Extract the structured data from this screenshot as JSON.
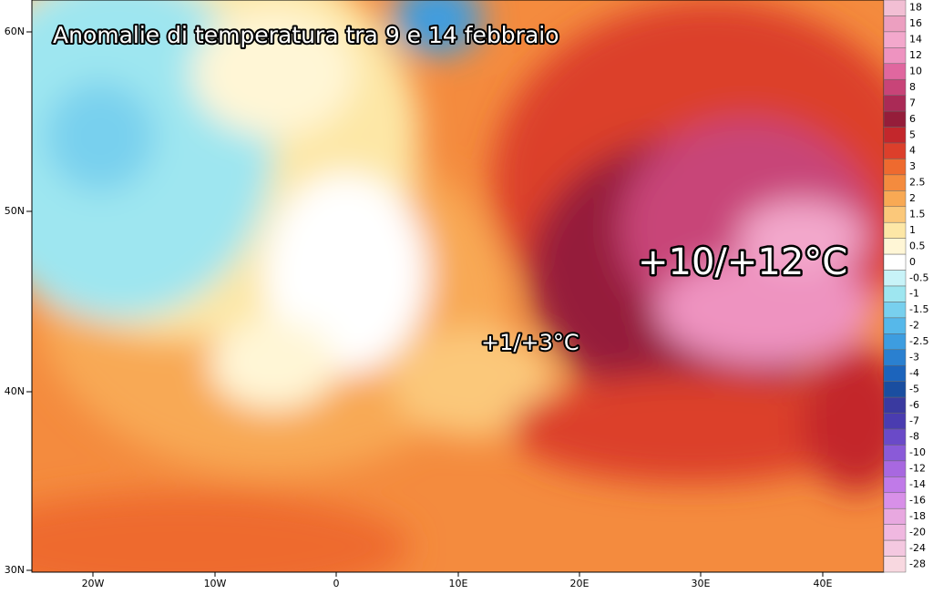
{
  "map": {
    "title": "Anomalie di temperatura tra 9 e 14 febbraio",
    "annotations": [
      "+10/+12°C",
      "+1/+3°C"
    ],
    "lat_labels": [
      "60N",
      "50N",
      "40N",
      "30N"
    ],
    "lon_labels": [
      "20W",
      "10W",
      "0",
      "10E",
      "20E",
      "30E",
      "40E"
    ],
    "legend": [
      {
        "label": "18",
        "color": "#f2bfd4"
      },
      {
        "label": "16",
        "color": "#ec9fc0"
      },
      {
        "label": "14",
        "color": "#f3a8cc"
      },
      {
        "label": "12",
        "color": "#ee93c0"
      },
      {
        "label": "10",
        "color": "#e0679f"
      },
      {
        "label": "8",
        "color": "#c84478"
      },
      {
        "label": "7",
        "color": "#aa2a56"
      },
      {
        "label": "6",
        "color": "#951d3a"
      },
      {
        "label": "5",
        "color": "#c3272c"
      },
      {
        "label": "4",
        "color": "#dc3f2b"
      },
      {
        "label": "3",
        "color": "#ee6a2f"
      },
      {
        "label": "2.5",
        "color": "#f48b3e"
      },
      {
        "label": "2",
        "color": "#f8a954"
      },
      {
        "label": "1.5",
        "color": "#fbc87a"
      },
      {
        "label": "1",
        "color": "#fde7a6"
      },
      {
        "label": "0.5",
        "color": "#fff6d6"
      },
      {
        "label": "0",
        "color": "#ffffff"
      },
      {
        "label": "-0.5",
        "color": "#c8f3f8"
      },
      {
        "label": "-1",
        "color": "#9ee6f0"
      },
      {
        "label": "-1.5",
        "color": "#78d0ee"
      },
      {
        "label": "-2",
        "color": "#56b8ea"
      },
      {
        "label": "-2.5",
        "color": "#3d9de0"
      },
      {
        "label": "-3",
        "color": "#2a80d0"
      },
      {
        "label": "-4",
        "color": "#1c64bc"
      },
      {
        "label": "-5",
        "color": "#1a4ea0"
      },
      {
        "label": "-6",
        "color": "#3a3aa0"
      },
      {
        "label": "-7",
        "color": "#4a3cb0"
      },
      {
        "label": "-8",
        "color": "#6a4ac8"
      },
      {
        "label": "-10",
        "color": "#8a5ad8"
      },
      {
        "label": "-12",
        "color": "#a868e0"
      },
      {
        "label": "-14",
        "color": "#c07ae8"
      },
      {
        "label": "-16",
        "color": "#d890e8"
      },
      {
        "label": "-18",
        "color": "#e8a8e0"
      },
      {
        "label": "-20",
        "color": "#f0b8e0"
      },
      {
        "label": "-24",
        "color": "#f4c8e0"
      },
      {
        "label": "-28",
        "color": "#f8d8e0"
      }
    ]
  }
}
